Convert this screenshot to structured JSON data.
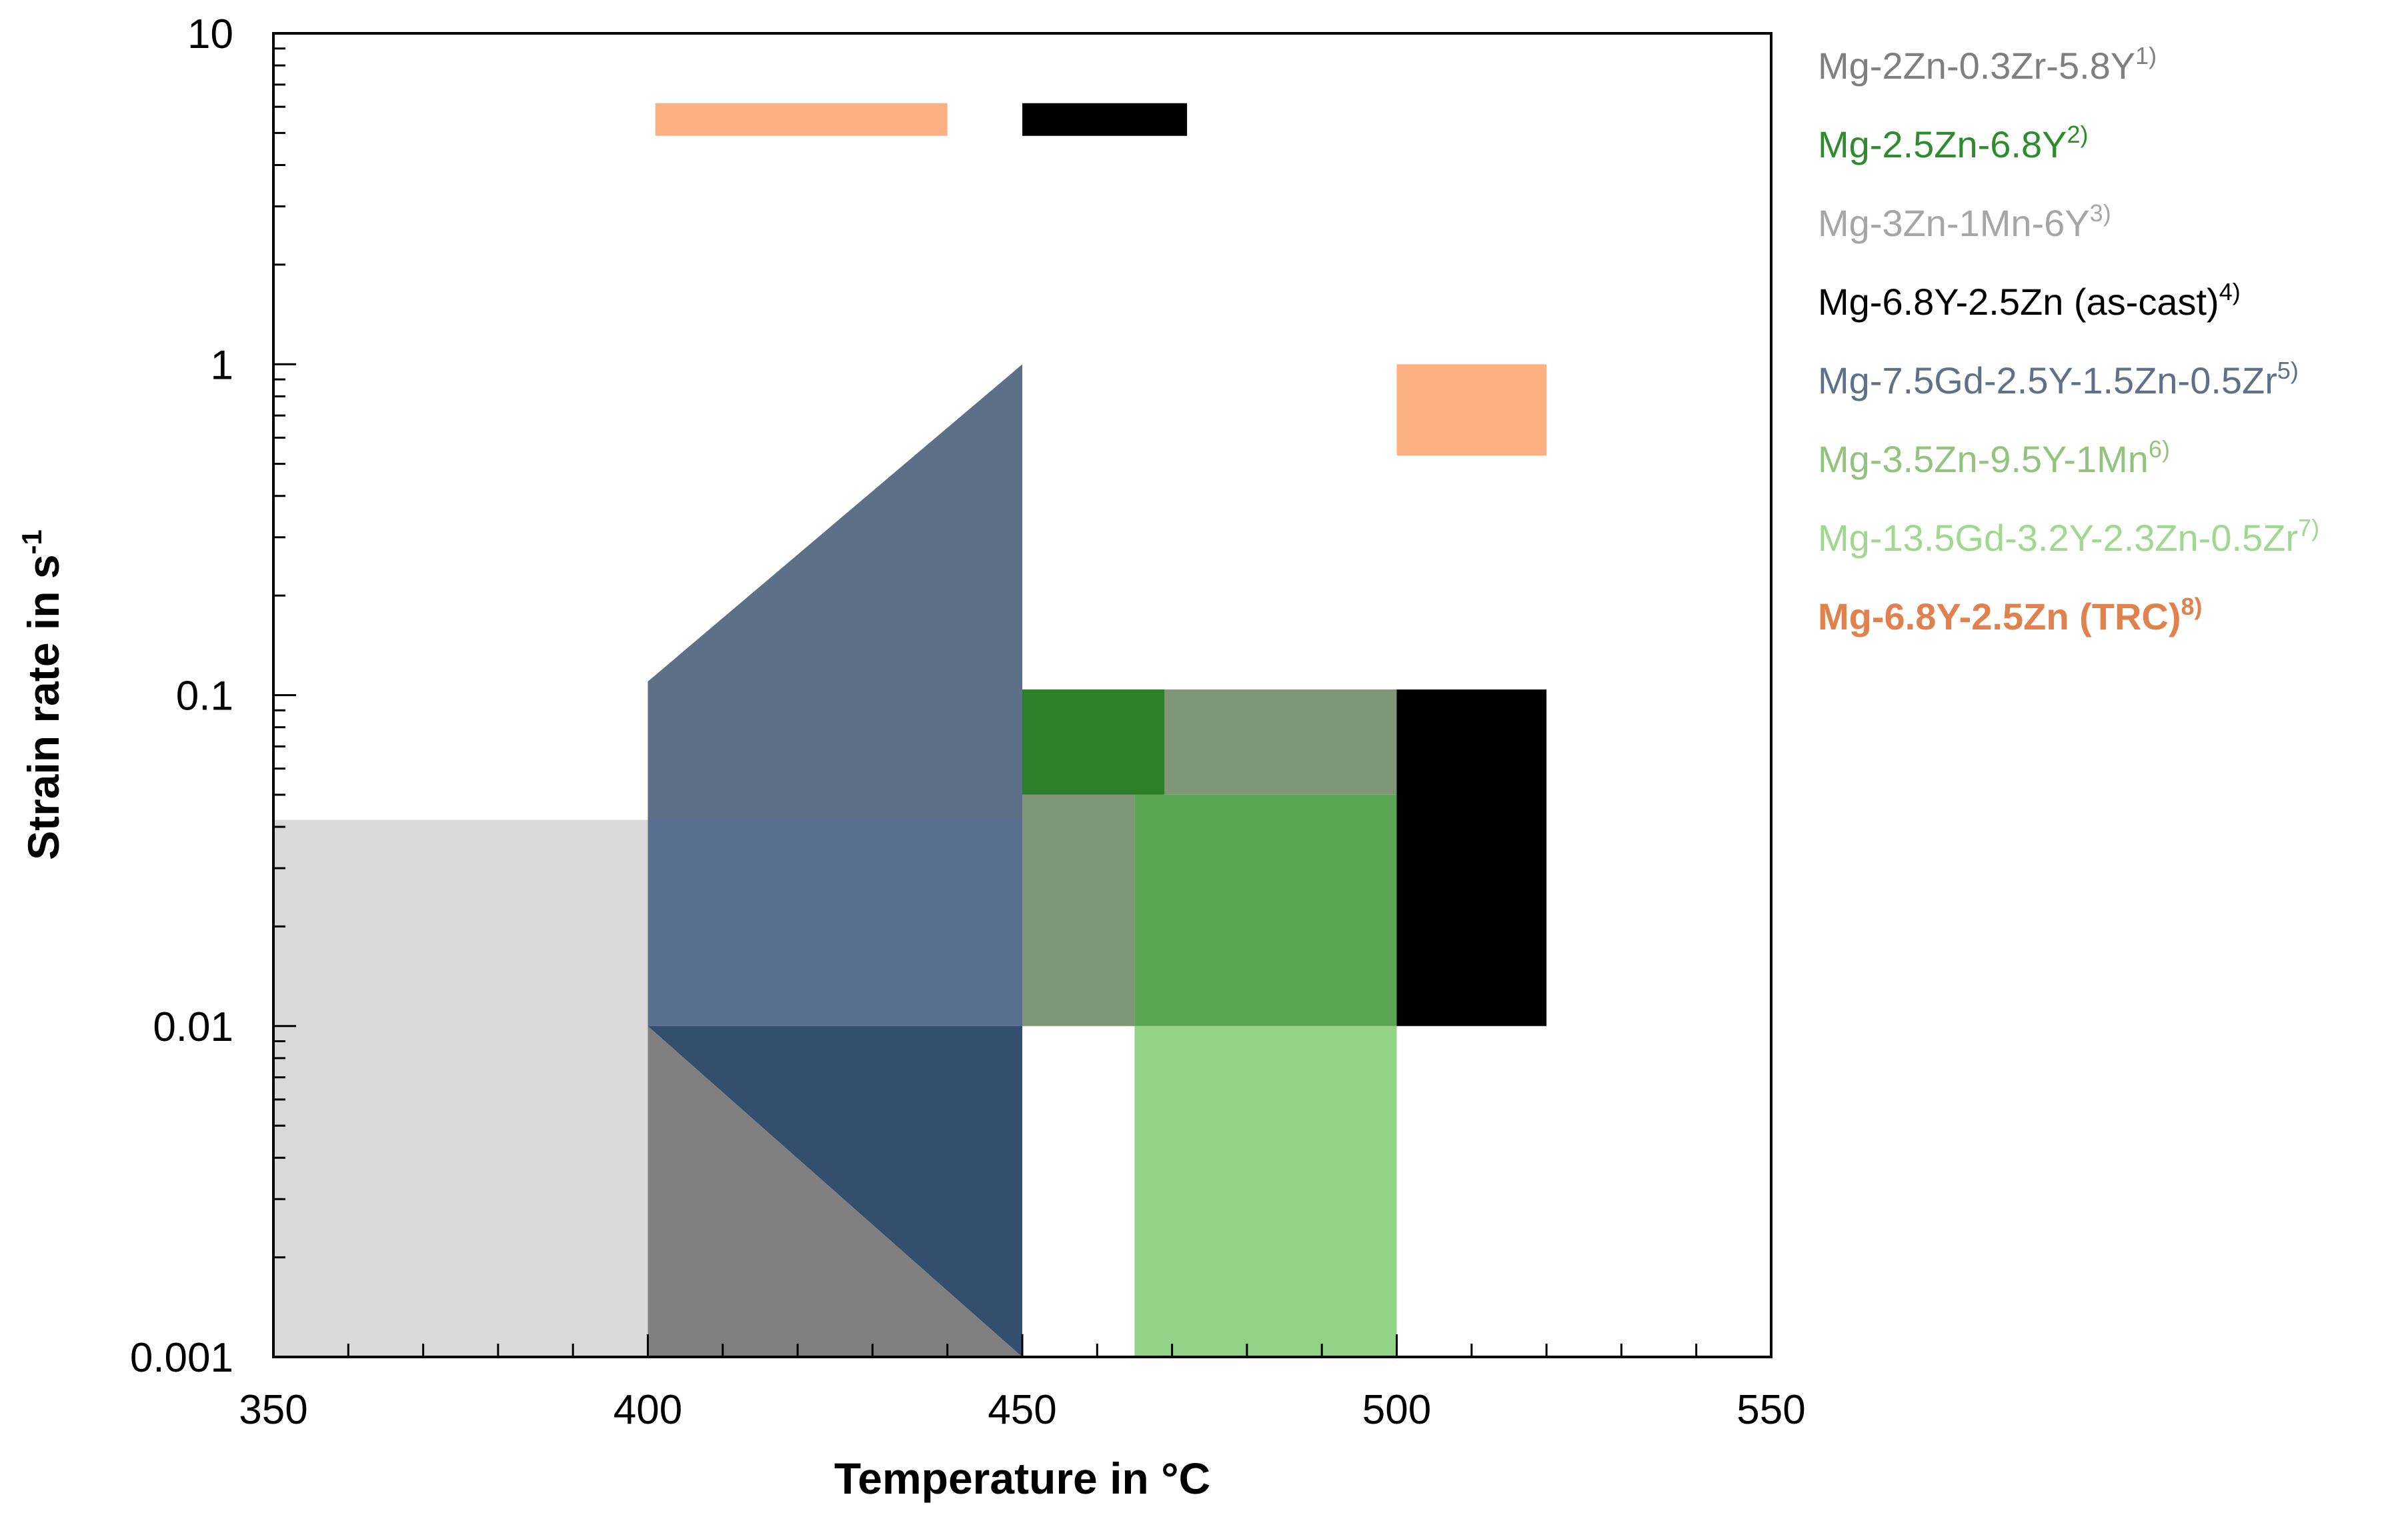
{
  "chart_data": {
    "type": "area",
    "title": "",
    "xlabel": "Temperature in °C",
    "ylabel_main": "Strain rate in s",
    "ylabel_sup": "-1",
    "xlim": [
      350,
      550
    ],
    "ylim": [
      0.001,
      10
    ],
    "yscale": "log",
    "grid": false,
    "legend_position": "right",
    "x_ticks": [
      350,
      400,
      450,
      500,
      550
    ],
    "x_tick_labels": [
      "350",
      "400",
      "450",
      "500",
      "550"
    ],
    "y_ticks": [
      0.001,
      0.01,
      0.1,
      1,
      10
    ],
    "y_tick_labels": [
      "0.001",
      "0.01",
      "0.1",
      "1",
      "10"
    ],
    "series": [
      {
        "name": "Mg-2Zn-0.3Zr-5.8Y",
        "ref": "1)",
        "color": "#d9d9d9",
        "label_color": "#7f7f7f",
        "regions": [
          [
            [
              350,
              0.001
            ],
            [
              400,
              0.001
            ],
            [
              400,
              0.042
            ],
            [
              350,
              0.042
            ]
          ]
        ]
      },
      {
        "name": "Mg-3Zn-1Mn-6Y",
        "ref": "3)",
        "color": "#808080",
        "label_color": "#a6a6a6",
        "regions": [
          [
            [
              400,
              0.001
            ],
            [
              450,
              0.001
            ],
            [
              400,
              0.01
            ]
          ]
        ]
      },
      {
        "name": "Mg-7.5Gd-2.5Y-1.5Zn-0.5Zr",
        "ref": "5)",
        "color": "#5c7088",
        "label_color": "#5f7189",
        "regions": [
          [
            [
              400,
              0.01
            ],
            [
              400,
              0.11
            ],
            [
              450,
              1
            ],
            [
              450,
              0.01
            ]
          ]
        ]
      },
      {
        "name": "Mg-7.5Gd-2.5Y-1.5Zn-0.5Zr overlap",
        "color": "#5a7090",
        "regions": [
          [
            [
              400,
              0.01
            ],
            [
              400,
              0.042
            ],
            [
              450,
              0.042
            ],
            [
              450,
              0.01
            ]
          ]
        ]
      },
      {
        "name": "Mg-7.5Gd-2.5Y-1.5Zn-0.5Zr lower",
        "color": "#344f6e",
        "regions": [
          [
            [
              400,
              0.01
            ],
            [
              450,
              0.01
            ],
            [
              450,
              0.001
            ]
          ]
        ]
      },
      {
        "name": "Mg-2.5Zn-6.8Y",
        "ref": "2)",
        "color": "#2e7f2a",
        "label_color": "#2e8b2e",
        "regions": [
          [
            [
              450,
              0.05
            ],
            [
              469,
              0.05
            ],
            [
              469,
              0.104
            ],
            [
              450,
              0.104
            ]
          ]
        ]
      },
      {
        "name": "Mg-3.5Zn-9.5Y-1Mn",
        "ref": "6)",
        "color": "#7f9776",
        "label_color": "#93c47d",
        "regions": [
          [
            [
              469,
              0.05
            ],
            [
              500,
              0.05
            ],
            [
              500,
              0.104
            ],
            [
              469,
              0.104
            ]
          ],
          [
            [
              450,
              0.01
            ],
            [
              465,
              0.01
            ],
            [
              465,
              0.05
            ],
            [
              450,
              0.05
            ]
          ]
        ]
      },
      {
        "name": "Mg-13.5Gd-3.2Y-2.3Zn-0.5Zr",
        "ref": "7)",
        "color": "#93d387",
        "label_color": "#a0d88f",
        "regions": [
          [
            [
              465,
              0.001
            ],
            [
              500,
              0.001
            ],
            [
              500,
              0.01
            ],
            [
              465,
              0.01
            ]
          ]
        ]
      },
      {
        "name": "Mg-13.5Gd-3.2Y-2.3Zn-0.5Zr overlap",
        "color": "#5ba653",
        "regions": [
          [
            [
              465,
              0.01
            ],
            [
              500,
              0.01
            ],
            [
              500,
              0.05
            ],
            [
              465,
              0.05
            ]
          ]
        ]
      },
      {
        "name": "Mg-6.8Y-2.5Zn (as-cast)",
        "ref": "4)",
        "color": "#000000",
        "label_color": "#000000",
        "regions": [
          [
            [
              500,
              0.01
            ],
            [
              520,
              0.01
            ],
            [
              520,
              0.104
            ],
            [
              500,
              0.104
            ]
          ],
          [
            [
              450,
              4.9
            ],
            [
              472,
              4.9
            ],
            [
              472,
              6.15
            ],
            [
              450,
              6.15
            ]
          ]
        ]
      },
      {
        "name": "Mg-6.8Y-2.5Zn (TRC)",
        "ref": "8)",
        "color": "#ffb083",
        "label_color": "#e0814e",
        "regions": [
          [
            [
              401,
              4.9
            ],
            [
              440,
              4.9
            ],
            [
              440,
              6.15
            ],
            [
              401,
              6.15
            ]
          ],
          [
            [
              500,
              0.53
            ],
            [
              520,
              0.53
            ],
            [
              520,
              1.0
            ],
            [
              500,
              1.0
            ]
          ]
        ]
      }
    ],
    "legend": [
      {
        "label": "Mg-2Zn-0.3Zr-5.8Y",
        "sup": "1)",
        "color": "#7f7f7f",
        "bold": false
      },
      {
        "label": "Mg-2.5Zn-6.8Y",
        "sup": "2)",
        "color": "#2e8b2e",
        "bold": false
      },
      {
        "label": "Mg-3Zn-1Mn-6Y",
        "sup": "3)",
        "color": "#a6a6a6",
        "bold": false
      },
      {
        "label": "Mg-6.8Y-2.5Zn (as-cast)",
        "sup": "4)",
        "color": "#000000",
        "bold": false
      },
      {
        "label": "Mg-7.5Gd-2.5Y-1.5Zn-0.5Zr",
        "sup": "5)",
        "color": "#5f7189",
        "bold": false
      },
      {
        "label": "Mg-3.5Zn-9.5Y-1Mn",
        "sup": "6)",
        "color": "#93c47d",
        "bold": false
      },
      {
        "label": "Mg-13.5Gd-3.2Y-2.3Zn-0.5Zr",
        "sup": "7)",
        "color": "#a0d88f",
        "bold": false
      },
      {
        "label": "Mg-6.8Y-2.5Zn (TRC)",
        "sup": "8)",
        "color": "#e0814e",
        "bold": true
      }
    ]
  }
}
